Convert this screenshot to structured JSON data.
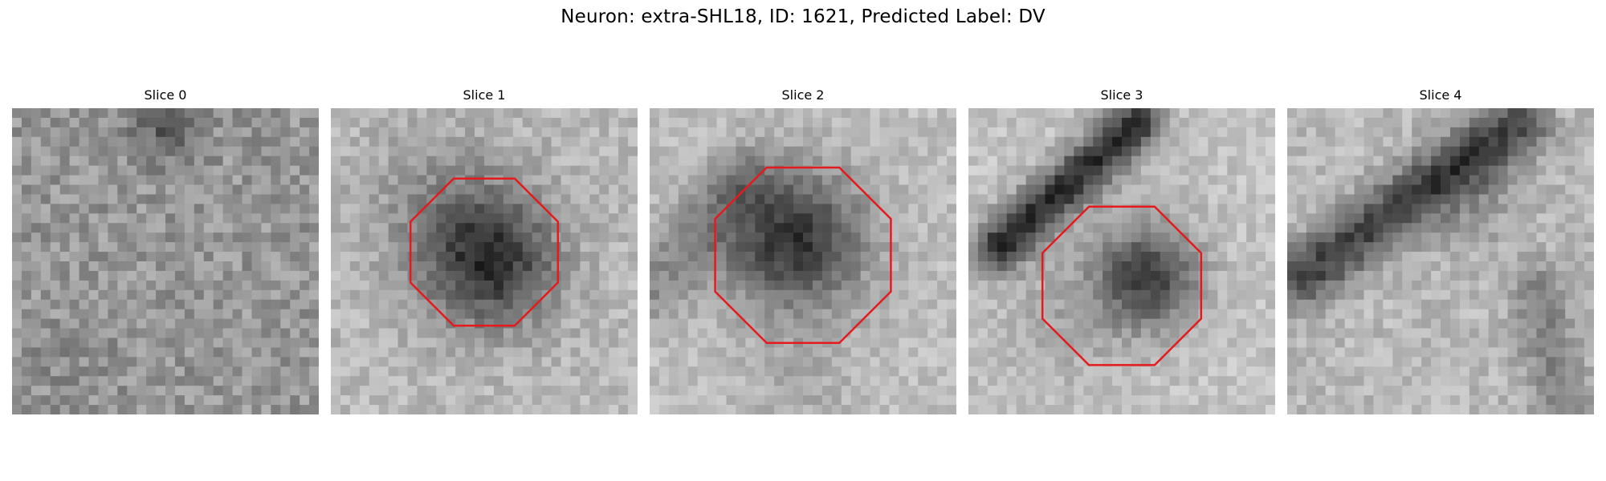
{
  "figure": {
    "title": "Neuron: extra-SHL18, ID: 1621, Predicted Label: DV"
  },
  "panels": [
    {
      "title": "Slice 0",
      "roi": false
    },
    {
      "title": "Slice 1",
      "roi": true
    },
    {
      "title": "Slice 2",
      "roi": true
    },
    {
      "title": "Slice 3",
      "roi": true
    },
    {
      "title": "Slice 4",
      "roi": false
    }
  ],
  "colors": {
    "roi": "#e41a1c"
  }
}
